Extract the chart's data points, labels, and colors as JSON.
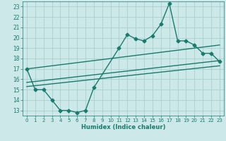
{
  "xlabel": "Humidex (Indice chaleur)",
  "ylabel": "",
  "xlim": [
    -0.5,
    23.5
  ],
  "ylim": [
    12.5,
    23.5
  ],
  "yticks": [
    13,
    14,
    15,
    16,
    17,
    18,
    19,
    20,
    21,
    22,
    23
  ],
  "xticks": [
    0,
    1,
    2,
    3,
    4,
    5,
    6,
    7,
    8,
    9,
    10,
    11,
    12,
    13,
    14,
    15,
    16,
    17,
    18,
    19,
    20,
    21,
    22,
    23
  ],
  "bg_color": "#cce8e8",
  "grid_color": "#aad0d0",
  "line_color": "#1a7a6e",
  "line_width": 1.0,
  "marker": "D",
  "marker_size": 2.5,
  "main_x": [
    0,
    1,
    2,
    3,
    4,
    5,
    6,
    7,
    8,
    11,
    12,
    13,
    14,
    15,
    16,
    17,
    18,
    19,
    20,
    21,
    22,
    23
  ],
  "main_y": [
    17.0,
    15.0,
    15.0,
    14.0,
    13.0,
    13.0,
    12.8,
    13.0,
    15.2,
    19.0,
    20.3,
    19.9,
    19.7,
    20.2,
    21.3,
    23.3,
    19.7,
    19.7,
    19.3,
    18.5,
    18.5,
    17.7
  ],
  "upper_line_x": [
    0,
    23
  ],
  "upper_line_y": [
    17.0,
    19.3
  ],
  "lower_line_x": [
    0,
    23
  ],
  "lower_line_y": [
    15.7,
    17.8
  ],
  "diag_line_x": [
    0,
    23
  ],
  "diag_line_y": [
    15.3,
    17.3
  ]
}
